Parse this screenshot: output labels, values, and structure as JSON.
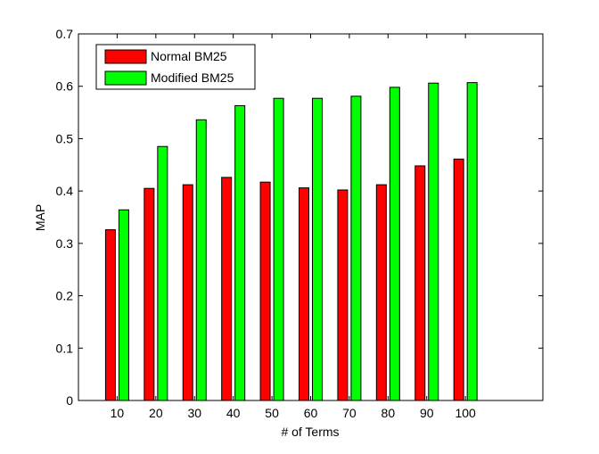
{
  "chart_data": {
    "type": "bar",
    "title": "",
    "xlabel": "# of Terms",
    "ylabel": "MAP",
    "categories": [
      "10",
      "20",
      "30",
      "40",
      "50",
      "60",
      "70",
      "80",
      "90",
      "100"
    ],
    "xlim": [
      0,
      120
    ],
    "ylim": [
      0,
      0.7
    ],
    "yticks": [
      "0",
      "0.1",
      "0.2",
      "0.3",
      "0.4",
      "0.5",
      "0.6",
      "0.7"
    ],
    "grid": false,
    "legend_position": "top-left",
    "series": [
      {
        "name": "Normal BM25",
        "color": "#ff0000",
        "values": [
          0.326,
          0.405,
          0.412,
          0.426,
          0.417,
          0.406,
          0.402,
          0.412,
          0.448,
          0.461
        ]
      },
      {
        "name": "Modified BM25",
        "color": "#00ff00",
        "values": [
          0.364,
          0.485,
          0.536,
          0.563,
          0.577,
          0.577,
          0.581,
          0.598,
          0.606,
          0.607
        ]
      }
    ]
  }
}
